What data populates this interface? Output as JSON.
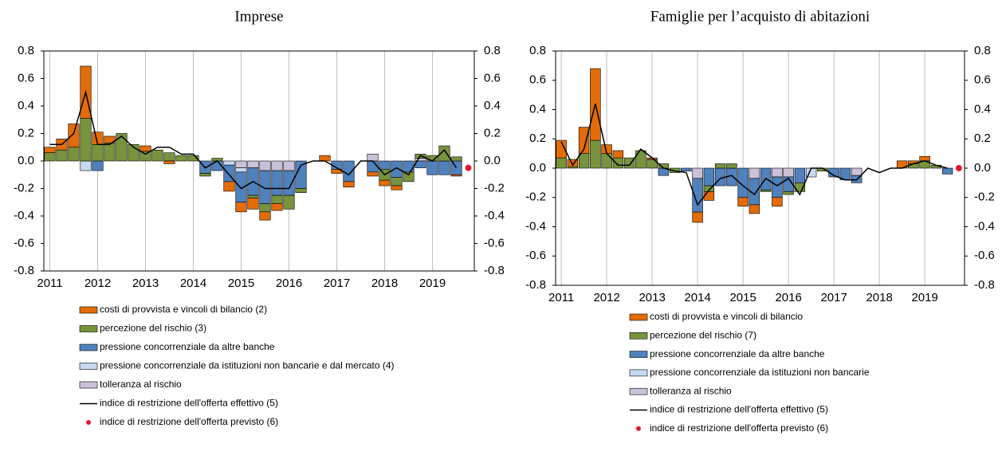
{
  "chart_data": [
    {
      "type": "bar",
      "title": "Imprese",
      "categories": [
        "2011",
        null,
        null,
        null,
        "2012",
        null,
        null,
        null,
        "2013",
        null,
        null,
        null,
        "2014",
        null,
        null,
        null,
        "2015",
        null,
        null,
        null,
        "2016",
        null,
        null,
        null,
        "2017",
        null,
        null,
        null,
        "2018",
        null,
        null,
        null,
        "2019",
        null,
        null,
        null
      ],
      "series": [
        {
          "name": "costi di provvista e vincoli di bilancio (2)",
          "color": "#e36c09",
          "values": [
            0.04,
            0.08,
            0.17,
            0.38,
            0.09,
            0.05,
            0,
            0,
            0.04,
            0,
            -0.02,
            0,
            0,
            0,
            0,
            -0.07,
            -0.07,
            -0.08,
            -0.06,
            -0.05,
            0,
            0,
            0,
            0.04,
            -0.03,
            -0.04,
            0,
            -0.03,
            -0.04,
            -0.03,
            0,
            0,
            0,
            0,
            -0.01,
            0
          ]
        },
        {
          "name": "percezione del rischio (3)",
          "color": "#77933c",
          "values": [
            0.06,
            0.08,
            0.1,
            0.31,
            0.12,
            0.13,
            0.2,
            0.12,
            0.07,
            0.08,
            0.06,
            0.04,
            0.04,
            -0.02,
            0.02,
            0,
            0,
            -0.02,
            -0.06,
            -0.06,
            -0.1,
            -0.03,
            0,
            0,
            0,
            0,
            0,
            0,
            -0.08,
            -0.06,
            -0.07,
            0.03,
            0.04,
            0.11,
            0.03,
            0
          ]
        },
        {
          "name": "pressione concorrenziale da altre banche",
          "color": "#4f81bd",
          "values": [
            0,
            0,
            0,
            0,
            -0.07,
            0,
            0,
            0,
            0,
            0,
            0,
            0,
            0,
            -0.09,
            -0.07,
            -0.12,
            -0.22,
            -0.2,
            -0.24,
            -0.18,
            -0.18,
            -0.2,
            0,
            0,
            -0.06,
            -0.15,
            0,
            -0.08,
            -0.06,
            -0.12,
            -0.08,
            -0.05,
            -0.1,
            -0.1,
            -0.1,
            0
          ]
        },
        {
          "name": "pressione concorrenziale da istituzioni non bancarie e dal mercato (4)",
          "color": "#c6d9f1",
          "values": [
            0,
            0,
            0,
            -0.07,
            0,
            0,
            0,
            0,
            0,
            0,
            0,
            0,
            0,
            0,
            0,
            -0.03,
            -0.03,
            0,
            0,
            0,
            0,
            0,
            0,
            0,
            0,
            0,
            0,
            0,
            0,
            0,
            0,
            0,
            0,
            0,
            0,
            0
          ]
        },
        {
          "name": "tolleranza al rischio",
          "color": "#ccc1da",
          "values": [
            0,
            0,
            0,
            0,
            0,
            0,
            0,
            0,
            0,
            0,
            0,
            0,
            0,
            0,
            0,
            0,
            -0.05,
            -0.05,
            -0.07,
            -0.07,
            -0.07,
            0,
            0,
            0,
            0,
            0,
            0,
            0.05,
            0,
            0,
            0,
            0.02,
            0,
            0,
            0,
            0
          ]
        },
        {
          "name": "indice di restrizione dell'offerta effettivo (5)",
          "type": "line",
          "color": "#000000",
          "values": [
            0.12,
            0.12,
            0.2,
            0.5,
            0.12,
            0.12,
            0.18,
            0.1,
            0.05,
            0.1,
            0.1,
            0.05,
            0.05,
            -0.05,
            0,
            -0.1,
            -0.2,
            -0.15,
            -0.2,
            -0.2,
            -0.2,
            -0.03,
            0,
            0,
            -0.05,
            -0.1,
            0,
            0,
            -0.1,
            -0.05,
            -0.1,
            0.04,
            0,
            0.08,
            -0.05,
            null
          ]
        },
        {
          "name": "indice di restrizione dell'offerta previsto (6)",
          "type": "scatter",
          "color": "#e31a2c",
          "values": [
            null,
            null,
            null,
            null,
            null,
            null,
            null,
            null,
            null,
            null,
            null,
            null,
            null,
            null,
            null,
            null,
            null,
            null,
            null,
            null,
            null,
            null,
            null,
            null,
            null,
            null,
            null,
            null,
            null,
            null,
            null,
            null,
            null,
            null,
            null,
            -0.05
          ]
        }
      ],
      "ylim": [
        -0.8,
        0.8
      ],
      "yticks": [
        -0.8,
        -0.6,
        -0.4,
        -0.2,
        {
          "value": 0,
          "label": "0.0"
        },
        0.2,
        0.4,
        0.6,
        0.8
      ],
      "y2lim": [
        -0.8,
        0.8
      ],
      "y2ticks": [
        -0.8,
        -0.6,
        -0.4,
        -0.2,
        {
          "value": 0,
          "label": "0.0"
        },
        0.2,
        0.4,
        0.6,
        0.8
      ],
      "grid": true
    },
    {
      "type": "bar",
      "title": "Famiglie per l’acquisto di abitazioni",
      "categories": [
        "2011",
        null,
        null,
        null,
        "2012",
        null,
        null,
        null,
        "2013",
        null,
        null,
        null,
        "2014",
        null,
        null,
        null,
        "2015",
        null,
        null,
        null,
        "2016",
        null,
        null,
        null,
        "2017",
        null,
        null,
        null,
        "2018",
        null,
        null,
        null,
        "2019",
        null,
        null,
        null
      ],
      "series": [
        {
          "name": "costi di provvista e vincoli di bilancio",
          "color": "#e36c09",
          "values": [
            0.12,
            0.05,
            0.18,
            0.49,
            0.06,
            0.05,
            0,
            0,
            0.01,
            0,
            0,
            0,
            -0.07,
            -0.06,
            0,
            0,
            -0.06,
            -0.06,
            0,
            -0.06,
            0,
            0,
            0,
            0,
            0,
            0,
            0,
            0,
            0,
            0,
            0.05,
            0.02,
            0.03,
            0,
            0,
            0
          ]
        },
        {
          "name": "percezione del rischio (7)",
          "color": "#77933c",
          "values": [
            0.07,
            0.01,
            0.1,
            0.19,
            0.1,
            0.07,
            0.07,
            0.12,
            0.06,
            0.03,
            -0.03,
            0,
            0,
            -0.04,
            0.03,
            0.03,
            0,
            0,
            -0.01,
            0,
            -0.02,
            -0.06,
            0,
            -0.02,
            0,
            0,
            0,
            0,
            0,
            0,
            0,
            0.03,
            0.05,
            0.02,
            0,
            0
          ]
        },
        {
          "name": "pressione concorrenziale da altre banche",
          "color": "#4f81bd",
          "values": [
            0,
            0,
            0,
            0,
            0,
            0,
            0,
            0,
            0,
            -0.05,
            0,
            -0.02,
            -0.23,
            -0.12,
            -0.12,
            -0.12,
            -0.2,
            -0.18,
            -0.15,
            -0.14,
            -0.1,
            -0.1,
            0,
            0,
            -0.06,
            -0.08,
            -0.05,
            0,
            0,
            0,
            0,
            0,
            0,
            0,
            -0.04,
            0
          ]
        },
        {
          "name": "pressione concorrenziale da istituzioni non bancarie",
          "color": "#c6d9f1",
          "values": [
            0,
            0,
            0,
            0,
            0,
            0,
            0,
            0,
            0,
            0,
            0,
            0,
            0,
            0,
            0,
            0,
            0,
            0,
            0,
            0,
            0,
            0,
            -0.06,
            0,
            0,
            0,
            0,
            0,
            0,
            0,
            0,
            0,
            0,
            0,
            0,
            0
          ]
        },
        {
          "name": "tolleranza al rischio",
          "color": "#ccc1da",
          "values": [
            0,
            0,
            0,
            0,
            0,
            0,
            0,
            0,
            0,
            0,
            0,
            0,
            -0.07,
            0,
            0,
            0,
            0,
            -0.07,
            0,
            -0.06,
            -0.06,
            0,
            0,
            0,
            0,
            0,
            -0.05,
            0,
            0,
            0,
            0,
            0,
            0,
            0,
            0,
            0
          ]
        },
        {
          "name": "indice di restrizione dell'offerta effettivo (5)",
          "type": "line",
          "color": "#000000",
          "values": [
            0.18,
            0.02,
            0.13,
            0.44,
            0.1,
            0.02,
            0.02,
            0.13,
            0.07,
            0,
            -0.02,
            -0.03,
            -0.25,
            -0.15,
            -0.07,
            -0.05,
            -0.12,
            -0.18,
            -0.07,
            -0.12,
            -0.07,
            -0.18,
            0,
            0,
            -0.05,
            -0.08,
            -0.08,
            0,
            -0.03,
            0,
            0,
            0.03,
            0.05,
            0.02,
            0,
            null
          ]
        },
        {
          "name": "indice di restrizione dell'offerta previsto (6)",
          "type": "scatter",
          "color": "#e31a2c",
          "values": [
            null,
            null,
            null,
            null,
            null,
            null,
            null,
            null,
            null,
            null,
            null,
            null,
            null,
            null,
            null,
            null,
            null,
            null,
            null,
            null,
            null,
            null,
            null,
            null,
            null,
            null,
            null,
            null,
            null,
            null,
            null,
            null,
            null,
            null,
            null,
            0
          ]
        }
      ],
      "ylim": [
        -0.8,
        0.8
      ],
      "yticks": [
        -0.8,
        -0.6,
        -0.4,
        -0.2,
        {
          "value": 0,
          "label": "0.0"
        },
        0.2,
        0.4,
        0.6,
        0.8
      ],
      "y2lim": [
        -0.8,
        0.8
      ],
      "y2ticks": [
        -0.8,
        -0.6,
        -0.4,
        -0.2,
        {
          "value": 0,
          "label": "0.0"
        },
        0.2,
        0.4,
        0.6,
        0.8
      ],
      "grid": true
    }
  ]
}
